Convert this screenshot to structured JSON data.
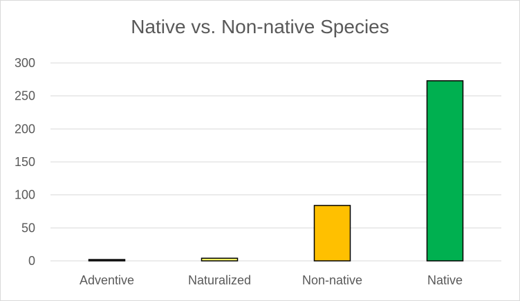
{
  "chart_data": {
    "type": "bar",
    "title": "Native vs. Non-native Species",
    "xlabel": "",
    "ylabel": "",
    "categories": [
      "Adventive",
      "Naturalized",
      "Non-native",
      "Native"
    ],
    "values": [
      2,
      4,
      84,
      273
    ],
    "ylim": [
      0,
      300
    ],
    "yticks": [
      0,
      50,
      100,
      150,
      200,
      250,
      300
    ],
    "ytick_labels": [
      "0",
      "50",
      "100",
      "150",
      "200",
      "250",
      "300"
    ],
    "grid": true,
    "legend": "none",
    "bar_colors": [
      "#404040",
      "#ffff66",
      "#ffc000",
      "#00b050"
    ],
    "bar_edge_color": "#000000",
    "gridline_color": "#d9d9d9",
    "text_color": "#595959"
  }
}
